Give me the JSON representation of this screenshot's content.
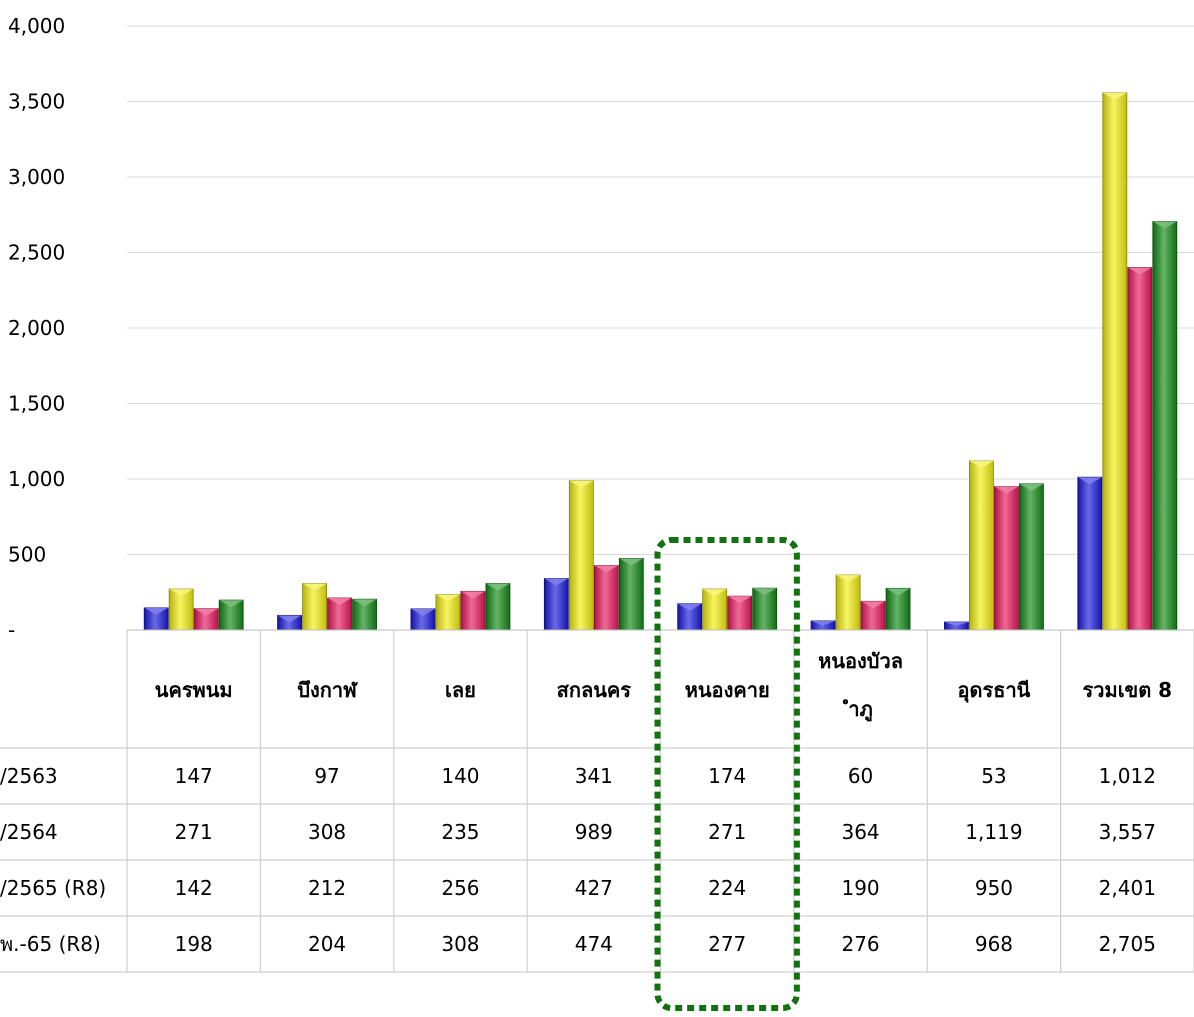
{
  "chart_data": {
    "type": "bar",
    "title": "",
    "xlabel": "",
    "ylabel": "",
    "ylim": [
      0,
      4000
    ],
    "yticks": [
      0,
      500,
      1000,
      1500,
      2000,
      2500,
      3000,
      3500,
      4000
    ],
    "ytick_labels": [
      "-",
      "500",
      "1,000",
      "1,500",
      "2,000",
      "2,500",
      "3,000",
      "3,500",
      "4,000"
    ],
    "grid": true,
    "legend": "table-below",
    "categories": [
      "นครพนม",
      "บึงกาฬ",
      "เลย",
      "สกลนคร",
      "หนองคาย",
      "หนองบัวลำภู",
      "อุดรธานี",
      "รวมเขต 8"
    ],
    "category_display": [
      [
        "นครพนม"
      ],
      [
        "บึงกาฬ"
      ],
      [
        "เลย"
      ],
      [
        "สกลนคร"
      ],
      [
        "หนองคาย"
      ],
      [
        "หนองบัวล",
        "ำภู"
      ],
      [
        "อุดรธานี"
      ],
      [
        "รวมเขต 8"
      ]
    ],
    "highlight_category": "หนองคาย",
    "series": [
      {
        "name": "/2563",
        "color": "#1a1adc",
        "values": [
          147,
          97,
          140,
          341,
          174,
          60,
          53,
          1012
        ],
        "labels": [
          "147",
          "97",
          "140",
          "341",
          "174",
          "60",
          "53",
          "1,012"
        ]
      },
      {
        "name": "/2564",
        "color": "#f2ee10",
        "values": [
          271,
          308,
          235,
          989,
          271,
          364,
          1119,
          3557
        ],
        "labels": [
          "271",
          "308",
          "235",
          "989",
          "271",
          "364",
          "1,119",
          "3,557"
        ]
      },
      {
        "name": "/2565 (R8)",
        "color": "#e8185e",
        "values": [
          142,
          212,
          256,
          427,
          224,
          190,
          950,
          2401
        ],
        "labels": [
          "142",
          "212",
          "256",
          "427",
          "224",
          "190",
          "950",
          "2,401"
        ]
      },
      {
        "name": "พ.-65 (R8)",
        "color": "#138a16",
        "values": [
          198,
          204,
          308,
          474,
          277,
          276,
          968,
          2705
        ],
        "labels": [
          "198",
          "204",
          "308",
          "474",
          "277",
          "276",
          "968",
          "2,705"
        ]
      }
    ]
  }
}
